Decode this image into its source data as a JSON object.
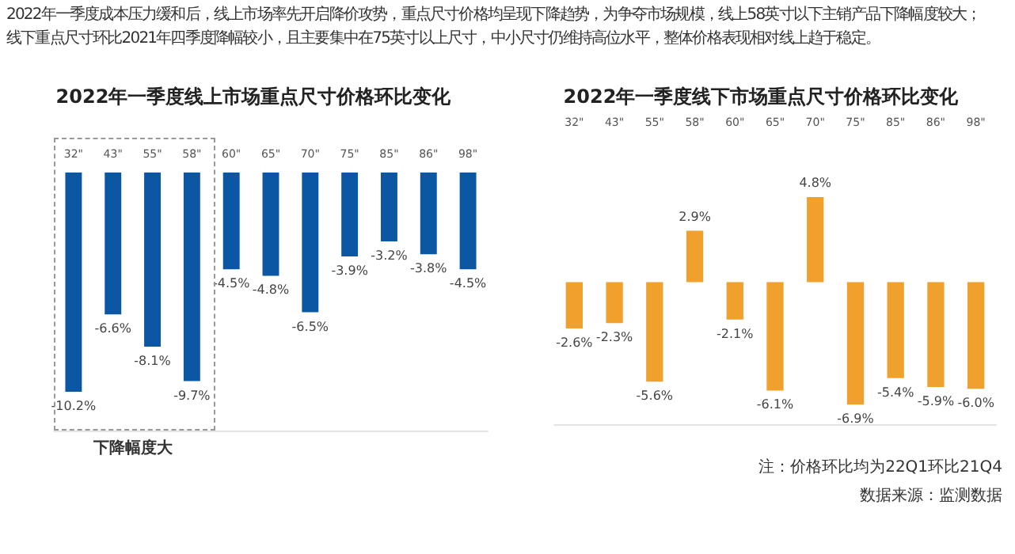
{
  "chart_data": [
    {
      "type": "bar",
      "title": "2022年一季度线上市场重点尺寸价格环比变化",
      "subtitle": "2022年一季度成本压力缓和后，线上市场率先开启降价攻势，重点尺寸价格均呈现下降趋势，为争夺市场规模，线上58英寸以下主销产品下降幅度较大；",
      "categories": [
        "32\"",
        "43\"",
        "55\"",
        "58\"",
        "60\"",
        "65\"",
        "70\"",
        "75\"",
        "85\"",
        "86\"",
        "98\""
      ],
      "values": [
        -10.2,
        -6.6,
        -8.1,
        -9.7,
        -4.5,
        -4.8,
        -6.5,
        -3.9,
        -3.2,
        -3.8,
        -4.5
      ],
      "value_labels": [
        "-10.2%",
        "-6.6%",
        "-8.1%",
        "-9.7%",
        "-4.5%",
        "-4.8%",
        "-6.5%",
        "-3.9%",
        "-3.2%",
        "-3.8%",
        "-4.5%"
      ],
      "color": "#0b57a4",
      "annotations": [
        "线下重点尺寸环比2021年四季度降幅较小，且主要集中在75英寸以上尺寸，中小尺寸仍维持高位水平，整体价格表现相对线上趋于稳定。",
        "下降幅度大"
      ]
    },
    {
      "type": "bar",
      "title": "2022年一季度线下市场重点尺寸价格环比变化",
      "categories": [
        "32\"",
        "43\"",
        "55\"",
        "58\"",
        "60\"",
        "65\"",
        "70\"",
        "75\"",
        "85\"",
        "86\"",
        "98\""
      ],
      "values": [
        -2.6,
        -2.3,
        -5.6,
        2.9,
        -2.1,
        -6.1,
        4.8,
        -6.9,
        -5.4,
        -5.9,
        -6.0
      ],
      "value_labels": [
        "-2.6%",
        "-2.3%",
        "-5.6%",
        "2.9%",
        "-2.1%",
        "-6.1%",
        "4.8%",
        "-6.9%",
        "-5.4%",
        "-5.9%",
        "-6.0%"
      ],
      "color": "#f0a02c",
      "annotations": [
        "注：价格环比均为22Q1环比21Q4",
        "数据来源：监测数据"
      ]
    }
  ]
}
